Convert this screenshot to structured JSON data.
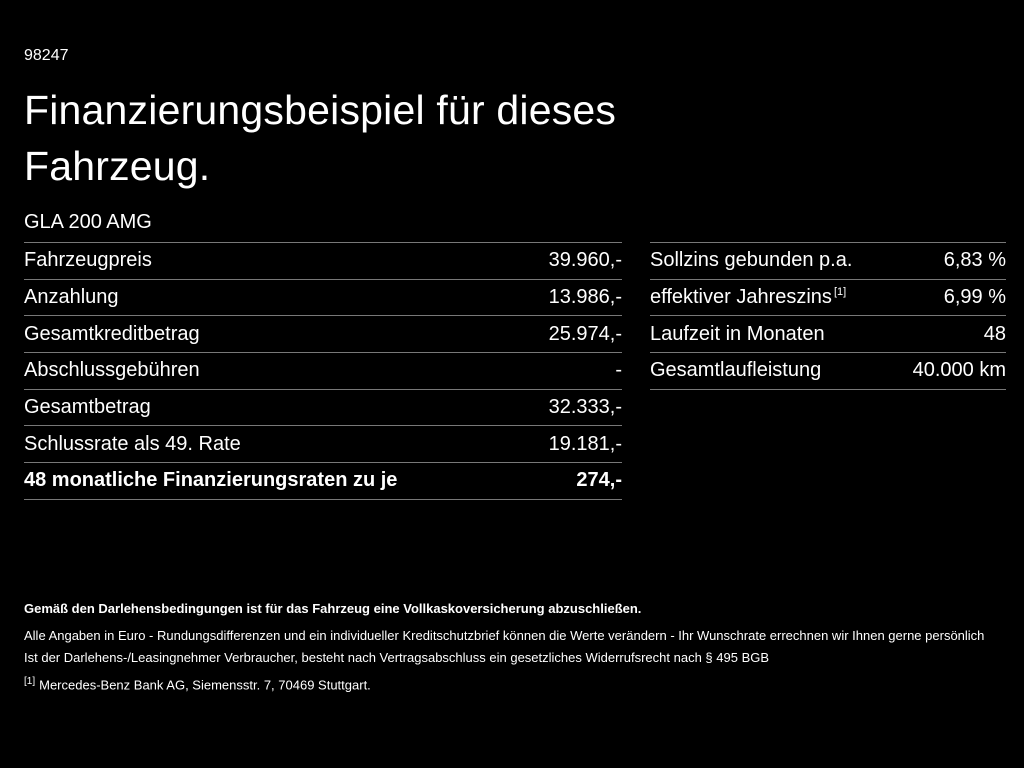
{
  "page": {
    "id_number": "98247",
    "title": "Finanzierungsbeispiel für dieses Fahrzeug.",
    "model": "GLA 200 AMG"
  },
  "colors": {
    "background": "#000000",
    "text": "#ffffff",
    "divider": "#787878"
  },
  "left_table": {
    "rows": [
      {
        "label": "Fahrzeugpreis",
        "value": "39.960,-"
      },
      {
        "label": "Anzahlung",
        "value": "13.986,-"
      },
      {
        "label": "Gesamtkreditbetrag",
        "value": "25.974,-"
      },
      {
        "label": "Abschlussgebühren",
        "value": "-"
      },
      {
        "label": "Gesamtbetrag",
        "value": "32.333,-"
      },
      {
        "label": "Schlussrate als 49. Rate",
        "value": "19.181,-"
      },
      {
        "label": "48 monatliche Finanzierungsraten zu je",
        "value": "274,-"
      }
    ]
  },
  "right_table": {
    "rows": [
      {
        "label": "Sollzins gebunden p.a.",
        "sup": "",
        "value": "6,83 %"
      },
      {
        "label": "effektiver Jahreszins",
        "sup": "[1]",
        "value": "6,99 %"
      },
      {
        "label": "Laufzeit in Monaten",
        "sup": "",
        "value": "48"
      },
      {
        "label": "Gesamtlaufleistung",
        "sup": "",
        "value": "40.000 km"
      }
    ]
  },
  "footer": {
    "line1": "Gemäß den Darlehensbedingungen ist für das Fahrzeug eine Vollkaskoversicherung abzuschließen.",
    "line2": "Alle Angaben in Euro - Rundungsdifferenzen und ein individueller Kreditschutzbrief können die Werte verändern - Ihr Wunschrate errechnen wir Ihnen gerne persönlich",
    "line3": "Ist der Darlehens-/Leasingnehmer Verbraucher, besteht nach Vertragsabschluss ein gesetzliches Widerrufsrecht nach § 495 BGB",
    "footnote_marker": "[1]",
    "footnote_text": "Mercedes-Benz Bank AG, Siemensstr. 7, 70469 Stuttgart."
  }
}
